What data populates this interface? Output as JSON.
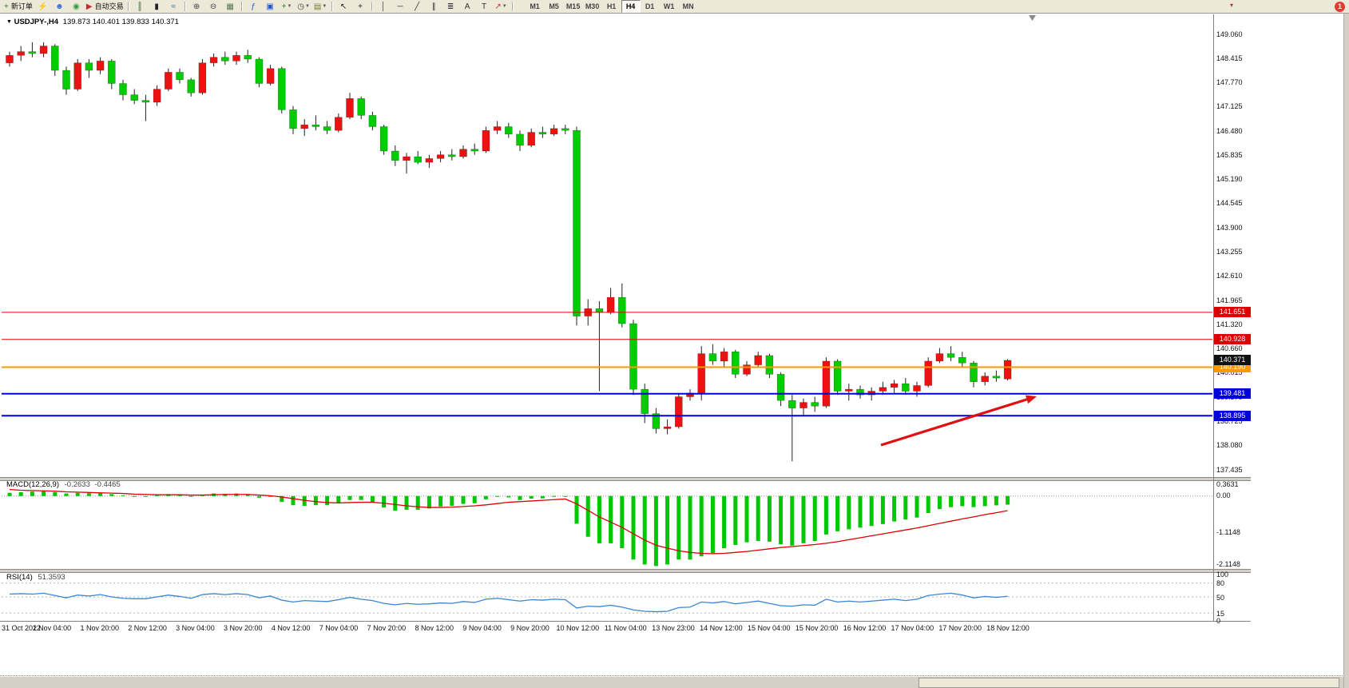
{
  "toolbar": {
    "new_order": "新订单",
    "auto_trading": "自动交易",
    "timeframe_label_list": [
      "M1",
      "M5",
      "M15",
      "M30",
      "H1",
      "H4",
      "D1",
      "W1",
      "MN"
    ],
    "active_timeframe": "H4",
    "notification_badge": "1",
    "icons": [
      {
        "name": "new-order-icon",
        "glyph": "+",
        "color": "#188818",
        "label_key": "new_order"
      },
      {
        "name": "flash-icon",
        "glyph": "⚡",
        "color": "#d49000"
      },
      {
        "name": "profile-icon",
        "glyph": "☻",
        "color": "#3b6bd6"
      },
      {
        "name": "signal-icon",
        "glyph": "◉",
        "color": "#2e9e3e"
      },
      {
        "name": "auto-trading-icon",
        "glyph": "▶",
        "color": "#c03030",
        "label_key": "auto_trading"
      },
      {
        "sep": true
      },
      {
        "name": "bar-chart-icon",
        "glyph": "║",
        "color": "#336633"
      },
      {
        "name": "candlestick-chart-icon",
        "glyph": "▮",
        "color": "#222222"
      },
      {
        "name": "line-chart-icon",
        "glyph": "≈",
        "color": "#336699"
      },
      {
        "sep": true
      },
      {
        "name": "zoom-in-icon",
        "glyph": "⊕",
        "color": "#444444"
      },
      {
        "name": "zoom-out-icon",
        "glyph": "⊖",
        "color": "#444444"
      },
      {
        "name": "tile-windows-icon",
        "glyph": "▦",
        "color": "#557755"
      },
      {
        "sep": true
      },
      {
        "name": "indicators-icon",
        "glyph": "ƒ",
        "color": "#2255cc"
      },
      {
        "name": "indicator-window-icon",
        "glyph": "▣",
        "color": "#2255cc"
      },
      {
        "name": "add-indicator-icon",
        "glyph": "+",
        "color": "#188818",
        "chevron": true
      },
      {
        "name": "period-icon",
        "glyph": "◷",
        "color": "#444444",
        "chevron": true
      },
      {
        "name": "template-icon",
        "glyph": "▤",
        "color": "#777733",
        "chevron": true
      },
      {
        "sep": true
      },
      {
        "name": "cursor-icon",
        "glyph": "↖",
        "color": "#222222"
      },
      {
        "name": "crosshair-icon",
        "glyph": "+",
        "color": "#222222"
      },
      {
        "sep": true
      },
      {
        "name": "vertical-line-icon",
        "glyph": "│",
        "color": "#333333"
      },
      {
        "name": "horizontal-line-icon",
        "glyph": "─",
        "color": "#333333"
      },
      {
        "name": "trendline-icon",
        "glyph": "╱",
        "color": "#333333"
      },
      {
        "name": "channel-icon",
        "glyph": "∥",
        "color": "#333333"
      },
      {
        "name": "fibonacci-icon",
        "glyph": "≣",
        "color": "#333333"
      },
      {
        "name": "text-icon",
        "glyph": "A",
        "color": "#333333"
      },
      {
        "name": "text-label-icon",
        "glyph": "T",
        "color": "#333333"
      },
      {
        "name": "arrows-icon",
        "glyph": "↗",
        "color": "#cc3333",
        "chevron": true
      },
      {
        "sep": true
      }
    ]
  },
  "chart_header": {
    "symbol_period": "USDJPY-,H4",
    "ohlc": "139.873 140.401 139.833 140.371"
  },
  "macd_header": {
    "label": "MACD(12,26,9)",
    "main_value": "-0.2633",
    "signal_value": "-0.4465"
  },
  "rsi_header": {
    "label": "RSI(14)",
    "value": "51.3593"
  },
  "chart_data": {
    "type": "candlestick",
    "symbol": "USDJPY-",
    "period": "H4",
    "last_ohlc": {
      "open": 139.873,
      "high": 140.401,
      "low": 139.833,
      "close": 140.371
    },
    "bid_price": 140.371,
    "bid_label": "140.371",
    "price_axis": {
      "max": 149.06,
      "min": 137.435,
      "step": 0.645,
      "labels": [
        "149.060",
        "148.415",
        "147.770",
        "147.125",
        "146.480",
        "145.835",
        "145.190",
        "144.545",
        "143.900",
        "143.255",
        "142.610",
        "141.965",
        "141.320",
        "140.660",
        "140.015",
        "139.370",
        "138.725",
        "138.080",
        "137.435"
      ]
    },
    "time_labels": [
      "31 Oct 2022",
      "1 Nov 04:00",
      "1 Nov 20:00",
      "2 Nov 12:00",
      "3 Nov 04:00",
      "3 Nov 20:00",
      "4 Nov 12:00",
      "7 Nov 04:00",
      "7 Nov 20:00",
      "8 Nov 12:00",
      "9 Nov 04:00",
      "9 Nov 20:00",
      "10 Nov 12:00",
      "11 Nov 04:00",
      "13 Nov 23:00",
      "14 Nov 12:00",
      "15 Nov 04:00",
      "15 Nov 20:00",
      "16 Nov 12:00",
      "17 Nov 04:00",
      "17 Nov 20:00",
      "18 Nov 12:00"
    ],
    "colors": {
      "bull": "#ee1111",
      "bear": "#00cc00",
      "wick": "#222222"
    },
    "horizontal_lines": [
      {
        "price": 141.651,
        "color": "#dd0000",
        "label": "141.651",
        "width": 1
      },
      {
        "price": 140.928,
        "color": "#dd0000",
        "label": "140.928",
        "width": 1
      },
      {
        "price": 140.19,
        "color": "#ff9900",
        "label": "140.190",
        "width": 2
      },
      {
        "price": 139.481,
        "color": "#0000dd",
        "label": "139.481",
        "width": 2
      },
      {
        "price": 138.895,
        "color": "#0000dd",
        "label": "138.895",
        "width": 2
      }
    ],
    "trend_arrow": {
      "from": [
        1103,
        557
      ],
      "to": [
        1298,
        496
      ],
      "color": "#e01010"
    },
    "candles": [
      [
        148.3,
        148.6,
        148.2,
        148.5
      ],
      [
        148.5,
        148.75,
        148.35,
        148.6
      ],
      [
        148.6,
        148.85,
        148.45,
        148.55
      ],
      [
        148.55,
        148.85,
        148.45,
        148.75
      ],
      [
        148.75,
        148.8,
        147.95,
        148.1
      ],
      [
        148.1,
        148.2,
        147.45,
        147.6
      ],
      [
        147.6,
        148.4,
        147.55,
        148.3
      ],
      [
        148.3,
        148.4,
        147.9,
        148.1
      ],
      [
        148.1,
        148.45,
        148.0,
        148.35
      ],
      [
        148.35,
        148.4,
        147.6,
        147.75
      ],
      [
        147.75,
        147.85,
        147.3,
        147.45
      ],
      [
        147.45,
        147.6,
        147.2,
        147.3
      ],
      [
        147.3,
        147.45,
        146.75,
        147.25
      ],
      [
        147.25,
        147.7,
        147.15,
        147.6
      ],
      [
        147.6,
        148.15,
        147.55,
        148.05
      ],
      [
        148.05,
        148.15,
        147.75,
        147.85
      ],
      [
        147.85,
        147.9,
        147.4,
        147.5
      ],
      [
        147.5,
        148.4,
        147.45,
        148.3
      ],
      [
        148.3,
        148.55,
        148.2,
        148.45
      ],
      [
        148.45,
        148.6,
        148.25,
        148.35
      ],
      [
        148.35,
        148.6,
        148.25,
        148.5
      ],
      [
        148.5,
        148.65,
        148.3,
        148.4
      ],
      [
        148.4,
        148.45,
        147.65,
        147.75
      ],
      [
        147.75,
        148.25,
        147.7,
        148.15
      ],
      [
        148.15,
        148.2,
        146.95,
        147.05
      ],
      [
        147.05,
        147.15,
        146.4,
        146.55
      ],
      [
        146.55,
        146.8,
        146.35,
        146.65
      ],
      [
        146.65,
        146.9,
        146.5,
        146.6
      ],
      [
        146.6,
        146.75,
        146.4,
        146.5
      ],
      [
        146.5,
        146.95,
        146.45,
        146.85
      ],
      [
        146.85,
        147.5,
        146.8,
        147.35
      ],
      [
        147.35,
        147.4,
        146.8,
        146.9
      ],
      [
        146.9,
        147.0,
        146.5,
        146.6
      ],
      [
        146.6,
        146.65,
        145.85,
        145.95
      ],
      [
        145.95,
        146.1,
        145.55,
        145.7
      ],
      [
        145.7,
        145.9,
        145.35,
        145.8
      ],
      [
        145.8,
        145.95,
        145.6,
        145.65
      ],
      [
        145.65,
        145.85,
        145.5,
        145.75
      ],
      [
        145.75,
        145.95,
        145.65,
        145.85
      ],
      [
        145.85,
        146.0,
        145.7,
        145.8
      ],
      [
        145.8,
        146.1,
        145.75,
        146.0
      ],
      [
        146.0,
        146.15,
        145.85,
        145.95
      ],
      [
        145.95,
        146.6,
        145.9,
        146.5
      ],
      [
        146.5,
        146.75,
        146.4,
        146.6
      ],
      [
        146.6,
        146.7,
        146.3,
        146.4
      ],
      [
        146.4,
        146.5,
        145.95,
        146.1
      ],
      [
        146.1,
        146.55,
        146.05,
        146.45
      ],
      [
        146.45,
        146.6,
        146.3,
        146.4
      ],
      [
        146.4,
        146.65,
        146.35,
        146.55
      ],
      [
        146.55,
        146.65,
        146.4,
        146.5
      ],
      [
        146.5,
        146.6,
        141.3,
        141.55
      ],
      [
        141.55,
        142.0,
        141.3,
        141.75
      ],
      [
        141.75,
        141.95,
        139.55,
        141.65
      ],
      [
        141.65,
        142.3,
        141.6,
        142.05
      ],
      [
        142.05,
        142.42,
        141.25,
        141.35
      ],
      [
        141.35,
        141.45,
        139.45,
        139.6
      ],
      [
        139.6,
        139.75,
        138.7,
        138.95
      ],
      [
        138.95,
        139.1,
        138.42,
        138.55
      ],
      [
        138.55,
        138.8,
        138.4,
        138.6
      ],
      [
        138.6,
        139.5,
        138.55,
        139.4
      ],
      [
        139.4,
        139.6,
        139.3,
        139.5
      ],
      [
        139.5,
        140.75,
        139.3,
        140.55
      ],
      [
        140.55,
        140.8,
        140.25,
        140.35
      ],
      [
        140.35,
        140.7,
        140.2,
        140.6
      ],
      [
        140.6,
        140.65,
        139.9,
        140.0
      ],
      [
        140.0,
        140.35,
        139.95,
        140.25
      ],
      [
        140.25,
        140.6,
        140.2,
        140.5
      ],
      [
        140.5,
        140.55,
        139.9,
        140.0
      ],
      [
        140.0,
        140.05,
        139.15,
        139.3
      ],
      [
        139.3,
        139.45,
        137.68,
        139.1
      ],
      [
        139.1,
        139.35,
        138.9,
        139.25
      ],
      [
        139.25,
        139.4,
        139.0,
        139.15
      ],
      [
        139.15,
        140.45,
        139.1,
        140.35
      ],
      [
        140.35,
        140.4,
        139.45,
        139.55
      ],
      [
        139.55,
        139.75,
        139.3,
        139.6
      ],
      [
        139.6,
        139.7,
        139.35,
        139.45
      ],
      [
        139.45,
        139.65,
        139.3,
        139.55
      ],
      [
        139.55,
        139.8,
        139.45,
        139.65
      ],
      [
        139.65,
        139.85,
        139.5,
        139.75
      ],
      [
        139.75,
        139.9,
        139.45,
        139.55
      ],
      [
        139.55,
        139.8,
        139.4,
        139.7
      ],
      [
        139.7,
        140.45,
        139.65,
        140.35
      ],
      [
        140.35,
        140.7,
        140.3,
        140.55
      ],
      [
        140.55,
        140.75,
        140.35,
        140.45
      ],
      [
        140.45,
        140.6,
        140.2,
        140.3
      ],
      [
        140.3,
        140.35,
        139.65,
        139.8
      ],
      [
        139.8,
        140.05,
        139.7,
        139.95
      ],
      [
        139.95,
        140.1,
        139.8,
        139.9
      ],
      [
        139.873,
        140.401,
        139.833,
        140.371
      ]
    ],
    "macd": {
      "histogram_color": "#00c800",
      "signal_color": "#dd0000",
      "scale_labels": [
        "0.3631",
        "0.00",
        "-1.1148",
        "-2.1148"
      ],
      "scale_values": [
        0.3631,
        0,
        -1.1148,
        -2.1148
      ],
      "histogram": [
        0.1,
        0.12,
        0.14,
        0.15,
        0.12,
        0.08,
        0.1,
        0.09,
        0.1,
        0.06,
        0.02,
        -0.01,
        -0.02,
        0.02,
        0.06,
        0.04,
        -0.02,
        0.04,
        0.08,
        0.07,
        0.08,
        0.05,
        -0.05,
        -0.02,
        -0.18,
        -0.28,
        -0.3,
        -0.28,
        -0.28,
        -0.22,
        -0.12,
        -0.12,
        -0.18,
        -0.35,
        -0.45,
        -0.42,
        -0.42,
        -0.38,
        -0.32,
        -0.3,
        -0.24,
        -0.22,
        -0.1,
        -0.02,
        -0.04,
        -0.12,
        -0.08,
        -0.07,
        -0.02,
        -0.02,
        -0.85,
        -1.25,
        -1.45,
        -1.45,
        -1.6,
        -1.95,
        -2.1,
        -2.15,
        -2.1,
        -1.95,
        -1.95,
        -1.85,
        -1.75,
        -1.6,
        -1.5,
        -1.42,
        -1.38,
        -1.4,
        -1.48,
        -1.52,
        -1.45,
        -1.38,
        -1.18,
        -1.08,
        -1.02,
        -0.97,
        -0.92,
        -0.86,
        -0.78,
        -0.72,
        -0.66,
        -0.52,
        -0.4,
        -0.34,
        -0.31,
        -0.34,
        -0.31,
        -0.285,
        -0.2633
      ],
      "signal": [
        0.2,
        0.18,
        0.17,
        0.16,
        0.15,
        0.13,
        0.12,
        0.11,
        0.1,
        0.09,
        0.08,
        0.06,
        0.05,
        0.04,
        0.04,
        0.04,
        0.03,
        0.03,
        0.04,
        0.05,
        0.05,
        0.05,
        0.03,
        0.01,
        -0.03,
        -0.08,
        -0.13,
        -0.17,
        -0.2,
        -0.21,
        -0.2,
        -0.19,
        -0.19,
        -0.22,
        -0.26,
        -0.3,
        -0.33,
        -0.35,
        -0.35,
        -0.34,
        -0.32,
        -0.3,
        -0.27,
        -0.23,
        -0.19,
        -0.17,
        -0.15,
        -0.13,
        -0.11,
        -0.09,
        -0.24,
        -0.44,
        -0.64,
        -0.8,
        -0.96,
        -1.16,
        -1.35,
        -1.51,
        -1.6,
        -1.68,
        -1.73,
        -1.76,
        -1.77,
        -1.76,
        -1.73,
        -1.7,
        -1.66,
        -1.62,
        -1.58,
        -1.55,
        -1.52,
        -1.49,
        -1.45,
        -1.4,
        -1.34,
        -1.28,
        -1.22,
        -1.16,
        -1.1,
        -1.04,
        -0.98,
        -0.91,
        -0.84,
        -0.77,
        -0.7,
        -0.64,
        -0.57,
        -0.51,
        -0.4465
      ]
    },
    "rsi": {
      "line_color": "#3a86d4",
      "levels": [
        100,
        80,
        50,
        15,
        0
      ],
      "scale_labels": [
        "100",
        "80",
        "50",
        "15",
        "0"
      ],
      "values": [
        56,
        57,
        56,
        58,
        53,
        48,
        54,
        52,
        55,
        50,
        47,
        46,
        46,
        50,
        54,
        51,
        47,
        55,
        57,
        55,
        57,
        55,
        48,
        52,
        43,
        39,
        42,
        41,
        40,
        44,
        49,
        45,
        42,
        36,
        33,
        36,
        34,
        35,
        37,
        36,
        40,
        38,
        45,
        47,
        44,
        41,
        44,
        43,
        45,
        44,
        26,
        30,
        29,
        32,
        28,
        22,
        19,
        18,
        19,
        27,
        28,
        39,
        37,
        40,
        35,
        38,
        41,
        36,
        31,
        30,
        33,
        32,
        45,
        39,
        41,
        39,
        41,
        43,
        45,
        42,
        45,
        53,
        56,
        58,
        54,
        48,
        51,
        49,
        51.36
      ]
    }
  }
}
